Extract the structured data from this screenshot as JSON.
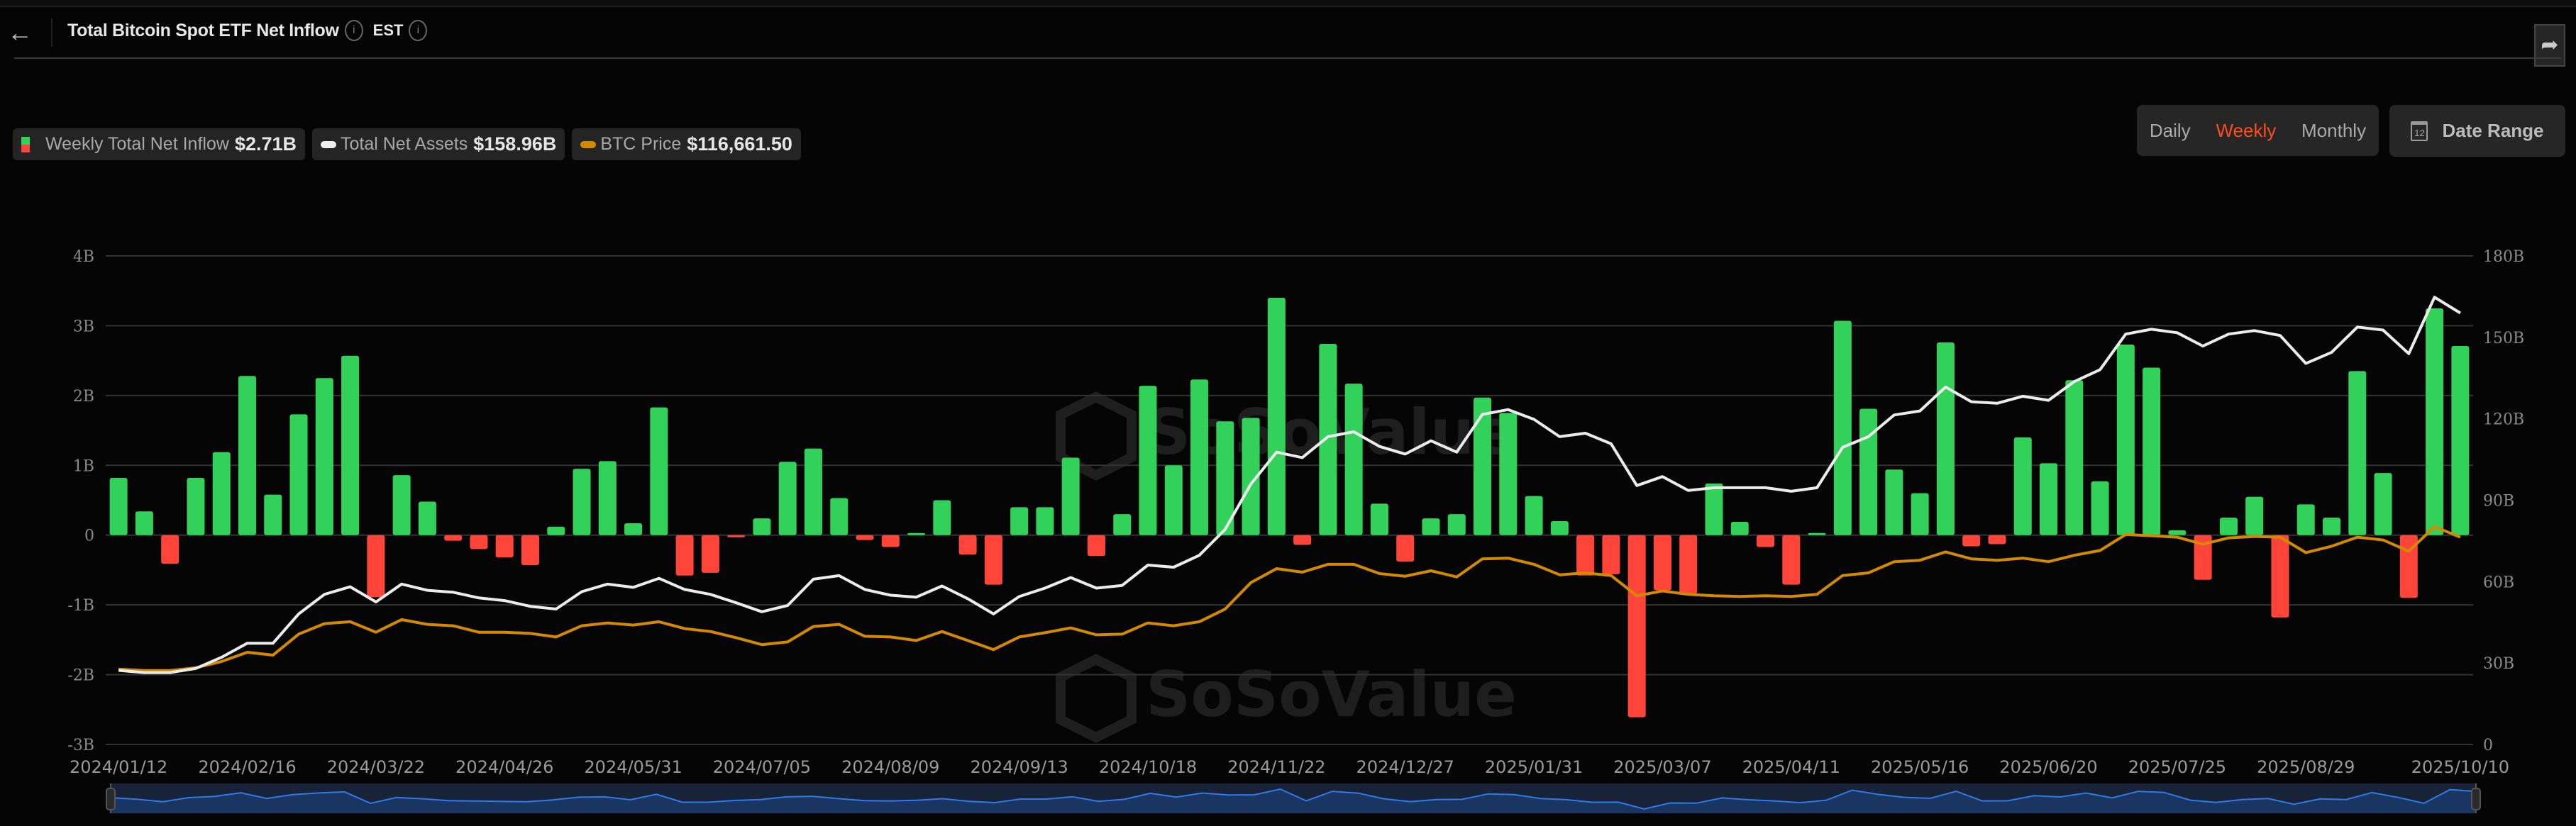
{
  "header": {
    "back_icon": "arrow-left-icon",
    "title": "Total Bitcoin Spot ETF Net Inflow",
    "timezone": "EST",
    "info_icon": "info-circle-icon",
    "share_icon": "share-arrow-icon"
  },
  "controls": {
    "periods": [
      "Daily",
      "Weekly",
      "Monthly"
    ],
    "active_period": "Weekly",
    "date_range_label": "Date Range",
    "calendar_icon_text": "12",
    "accent_color": "#ff4b1f"
  },
  "legend": [
    {
      "label": "Weekly Total Net Inflow",
      "value": "$2.71B"
    },
    {
      "label": "Total Net Assets",
      "value": "$158.96B"
    },
    {
      "label": "BTC Price",
      "value": "$116,661.50"
    }
  ],
  "watermark": "SoSoValue",
  "chart_data": {
    "type": "bar+line",
    "left_axis": {
      "ticks": [
        "4B",
        "3B",
        "2B",
        "1B",
        "0",
        "-1B",
        "-2B",
        "-3B"
      ],
      "range": [
        -3,
        4
      ],
      "unit": "B USD"
    },
    "right_axis": {
      "ticks": [
        "180B",
        "150B",
        "120B",
        "90B",
        "60B",
        "30B",
        "0"
      ],
      "range": [
        0,
        180
      ],
      "unit": "B USD"
    },
    "btc_axis_hidden_range": [
      0,
      275000
    ],
    "grid": true,
    "x_tick_labels": [
      "2024/01/12",
      "2024/02/16",
      "2024/03/22",
      "2024/04/26",
      "2024/05/31",
      "2024/07/05",
      "2024/08/09",
      "2024/09/13",
      "2024/10/18",
      "2024/11/22",
      "2024/12/27",
      "2025/01/31",
      "2025/03/07",
      "2025/04/11",
      "2025/05/16",
      "2025/06/20",
      "2025/07/25",
      "2025/08/29",
      "2025/10/10"
    ],
    "categories": [
      "2024/01/12",
      "2024/01/19",
      "2024/01/26",
      "2024/02/02",
      "2024/02/09",
      "2024/02/16",
      "2024/02/23",
      "2024/03/01",
      "2024/03/08",
      "2024/03/15",
      "2024/03/22",
      "2024/03/29",
      "2024/04/05",
      "2024/04/12",
      "2024/04/19",
      "2024/04/26",
      "2024/05/03",
      "2024/05/10",
      "2024/05/17",
      "2024/05/24",
      "2024/05/31",
      "2024/06/07",
      "2024/06/14",
      "2024/06/21",
      "2024/06/28",
      "2024/07/05",
      "2024/07/12",
      "2024/07/19",
      "2024/07/26",
      "2024/08/02",
      "2024/08/09",
      "2024/08/16",
      "2024/08/23",
      "2024/08/30",
      "2024/09/06",
      "2024/09/13",
      "2024/09/20",
      "2024/09/27",
      "2024/10/04",
      "2024/10/11",
      "2024/10/18",
      "2024/10/25",
      "2024/11/01",
      "2024/11/08",
      "2024/11/15",
      "2024/11/22",
      "2024/11/29",
      "2024/12/06",
      "2024/12/13",
      "2024/12/20",
      "2024/12/27",
      "2025/01/03",
      "2025/01/10",
      "2025/01/17",
      "2025/01/24",
      "2025/01/31",
      "2025/02/07",
      "2025/02/14",
      "2025/02/21",
      "2025/02/28",
      "2025/03/07",
      "2025/03/14",
      "2025/03/21",
      "2025/03/28",
      "2025/04/04",
      "2025/04/11",
      "2025/04/18",
      "2025/04/25",
      "2025/05/02",
      "2025/05/09",
      "2025/05/16",
      "2025/05/23",
      "2025/05/30",
      "2025/06/06",
      "2025/06/13",
      "2025/06/20",
      "2025/06/27",
      "2025/07/04",
      "2025/07/11",
      "2025/07/18",
      "2025/07/25",
      "2025/08/01",
      "2025/08/08",
      "2025/08/15",
      "2025/08/22",
      "2025/08/29",
      "2025/09/05",
      "2025/09/12",
      "2025/09/19",
      "2025/09/26",
      "2025/10/03",
      "2025/10/10"
    ],
    "series": [
      {
        "name": "Weekly Total Net Inflow",
        "type": "bar",
        "axis": "left",
        "positive_color": "#32d15a",
        "negative_color": "#ff453a",
        "values": [
          0.82,
          0.34,
          -0.41,
          0.82,
          1.19,
          2.28,
          0.58,
          1.73,
          2.25,
          2.57,
          -0.89,
          0.86,
          0.48,
          -0.08,
          -0.2,
          -0.32,
          -0.43,
          0.12,
          0.95,
          1.06,
          0.17,
          1.83,
          -0.58,
          -0.54,
          -0.03,
          0.24,
          1.05,
          1.24,
          0.53,
          -0.07,
          -0.17,
          0.03,
          0.5,
          -0.28,
          -0.71,
          0.4,
          0.4,
          1.11,
          -0.3,
          0.3,
          2.14,
          1.0,
          2.23,
          1.63,
          1.68,
          3.4,
          -0.14,
          2.74,
          2.17,
          0.45,
          -0.38,
          0.24,
          0.3,
          1.97,
          1.75,
          0.56,
          0.2,
          -0.58,
          -0.56,
          -2.61,
          -0.79,
          -0.84,
          0.74,
          0.19,
          -0.17,
          -0.71,
          0.02,
          3.07,
          1.81,
          0.94,
          0.6,
          2.76,
          -0.16,
          -0.13,
          1.4,
          1.03,
          2.22,
          0.77,
          2.73,
          2.4,
          0.07,
          -0.64,
          0.25,
          0.55,
          -1.18,
          0.44,
          0.25,
          2.35,
          0.89,
          -0.9,
          3.25,
          2.71
        ]
      },
      {
        "name": "Total Net Assets",
        "type": "line",
        "axis": "right",
        "color": "#ececec",
        "values": [
          27.3,
          26.5,
          26.5,
          28.0,
          32.1,
          37.3,
          37.3,
          48.1,
          55.3,
          58.1,
          52.5,
          59.1,
          56.8,
          56.1,
          54.0,
          53.0,
          50.9,
          49.9,
          56.3,
          59.1,
          57.9,
          61.2,
          57.1,
          55.3,
          52.2,
          48.9,
          51.2,
          60.9,
          62.2,
          57.1,
          55.0,
          54.3,
          58.4,
          53.7,
          48.1,
          54.5,
          57.6,
          61.5,
          57.6,
          58.6,
          66.1,
          65.3,
          69.7,
          79.2,
          95.9,
          107.7,
          105.7,
          113.4,
          115.2,
          109.8,
          107.0,
          111.9,
          107.7,
          121.6,
          123.4,
          119.8,
          113.4,
          114.7,
          110.8,
          95.4,
          98.7,
          93.6,
          94.6,
          94.6,
          94.6,
          93.3,
          94.6,
          109.5,
          113.4,
          121.4,
          122.9,
          131.7,
          126.3,
          125.7,
          128.3,
          126.8,
          133.7,
          138.1,
          151.2,
          153.0,
          151.7,
          146.8,
          151.2,
          152.5,
          150.7,
          140.4,
          144.5,
          153.8,
          152.7,
          144.0,
          164.8,
          158.96
        ]
      },
      {
        "name": "BTC Price",
        "type": "line",
        "axis": "hidden",
        "color": "#d48a00",
        "values": [
          42400,
          41600,
          41600,
          43200,
          46700,
          51900,
          50300,
          62100,
          68000,
          69100,
          63200,
          70300,
          67600,
          66800,
          63200,
          63200,
          62500,
          60500,
          66800,
          68400,
          67200,
          69100,
          65200,
          63600,
          60100,
          56200,
          57700,
          66400,
          67600,
          60900,
          60500,
          58500,
          63600,
          58500,
          53400,
          60500,
          62900,
          65600,
          61700,
          62100,
          68400,
          66800,
          69100,
          76200,
          91100,
          99000,
          97000,
          101400,
          101400,
          96200,
          94700,
          97800,
          94300,
          104500,
          104900,
          101400,
          95500,
          96600,
          95100,
          83700,
          86400,
          84500,
          83700,
          83300,
          83700,
          83300,
          84500,
          95100,
          96600,
          102900,
          103700,
          108400,
          104500,
          103700,
          104900,
          102900,
          106500,
          109200,
          118200,
          117500,
          116700,
          112700,
          116300,
          117100,
          116700,
          108000,
          111600,
          116700,
          115100,
          108800,
          122600,
          116661.5
        ]
      }
    ]
  }
}
